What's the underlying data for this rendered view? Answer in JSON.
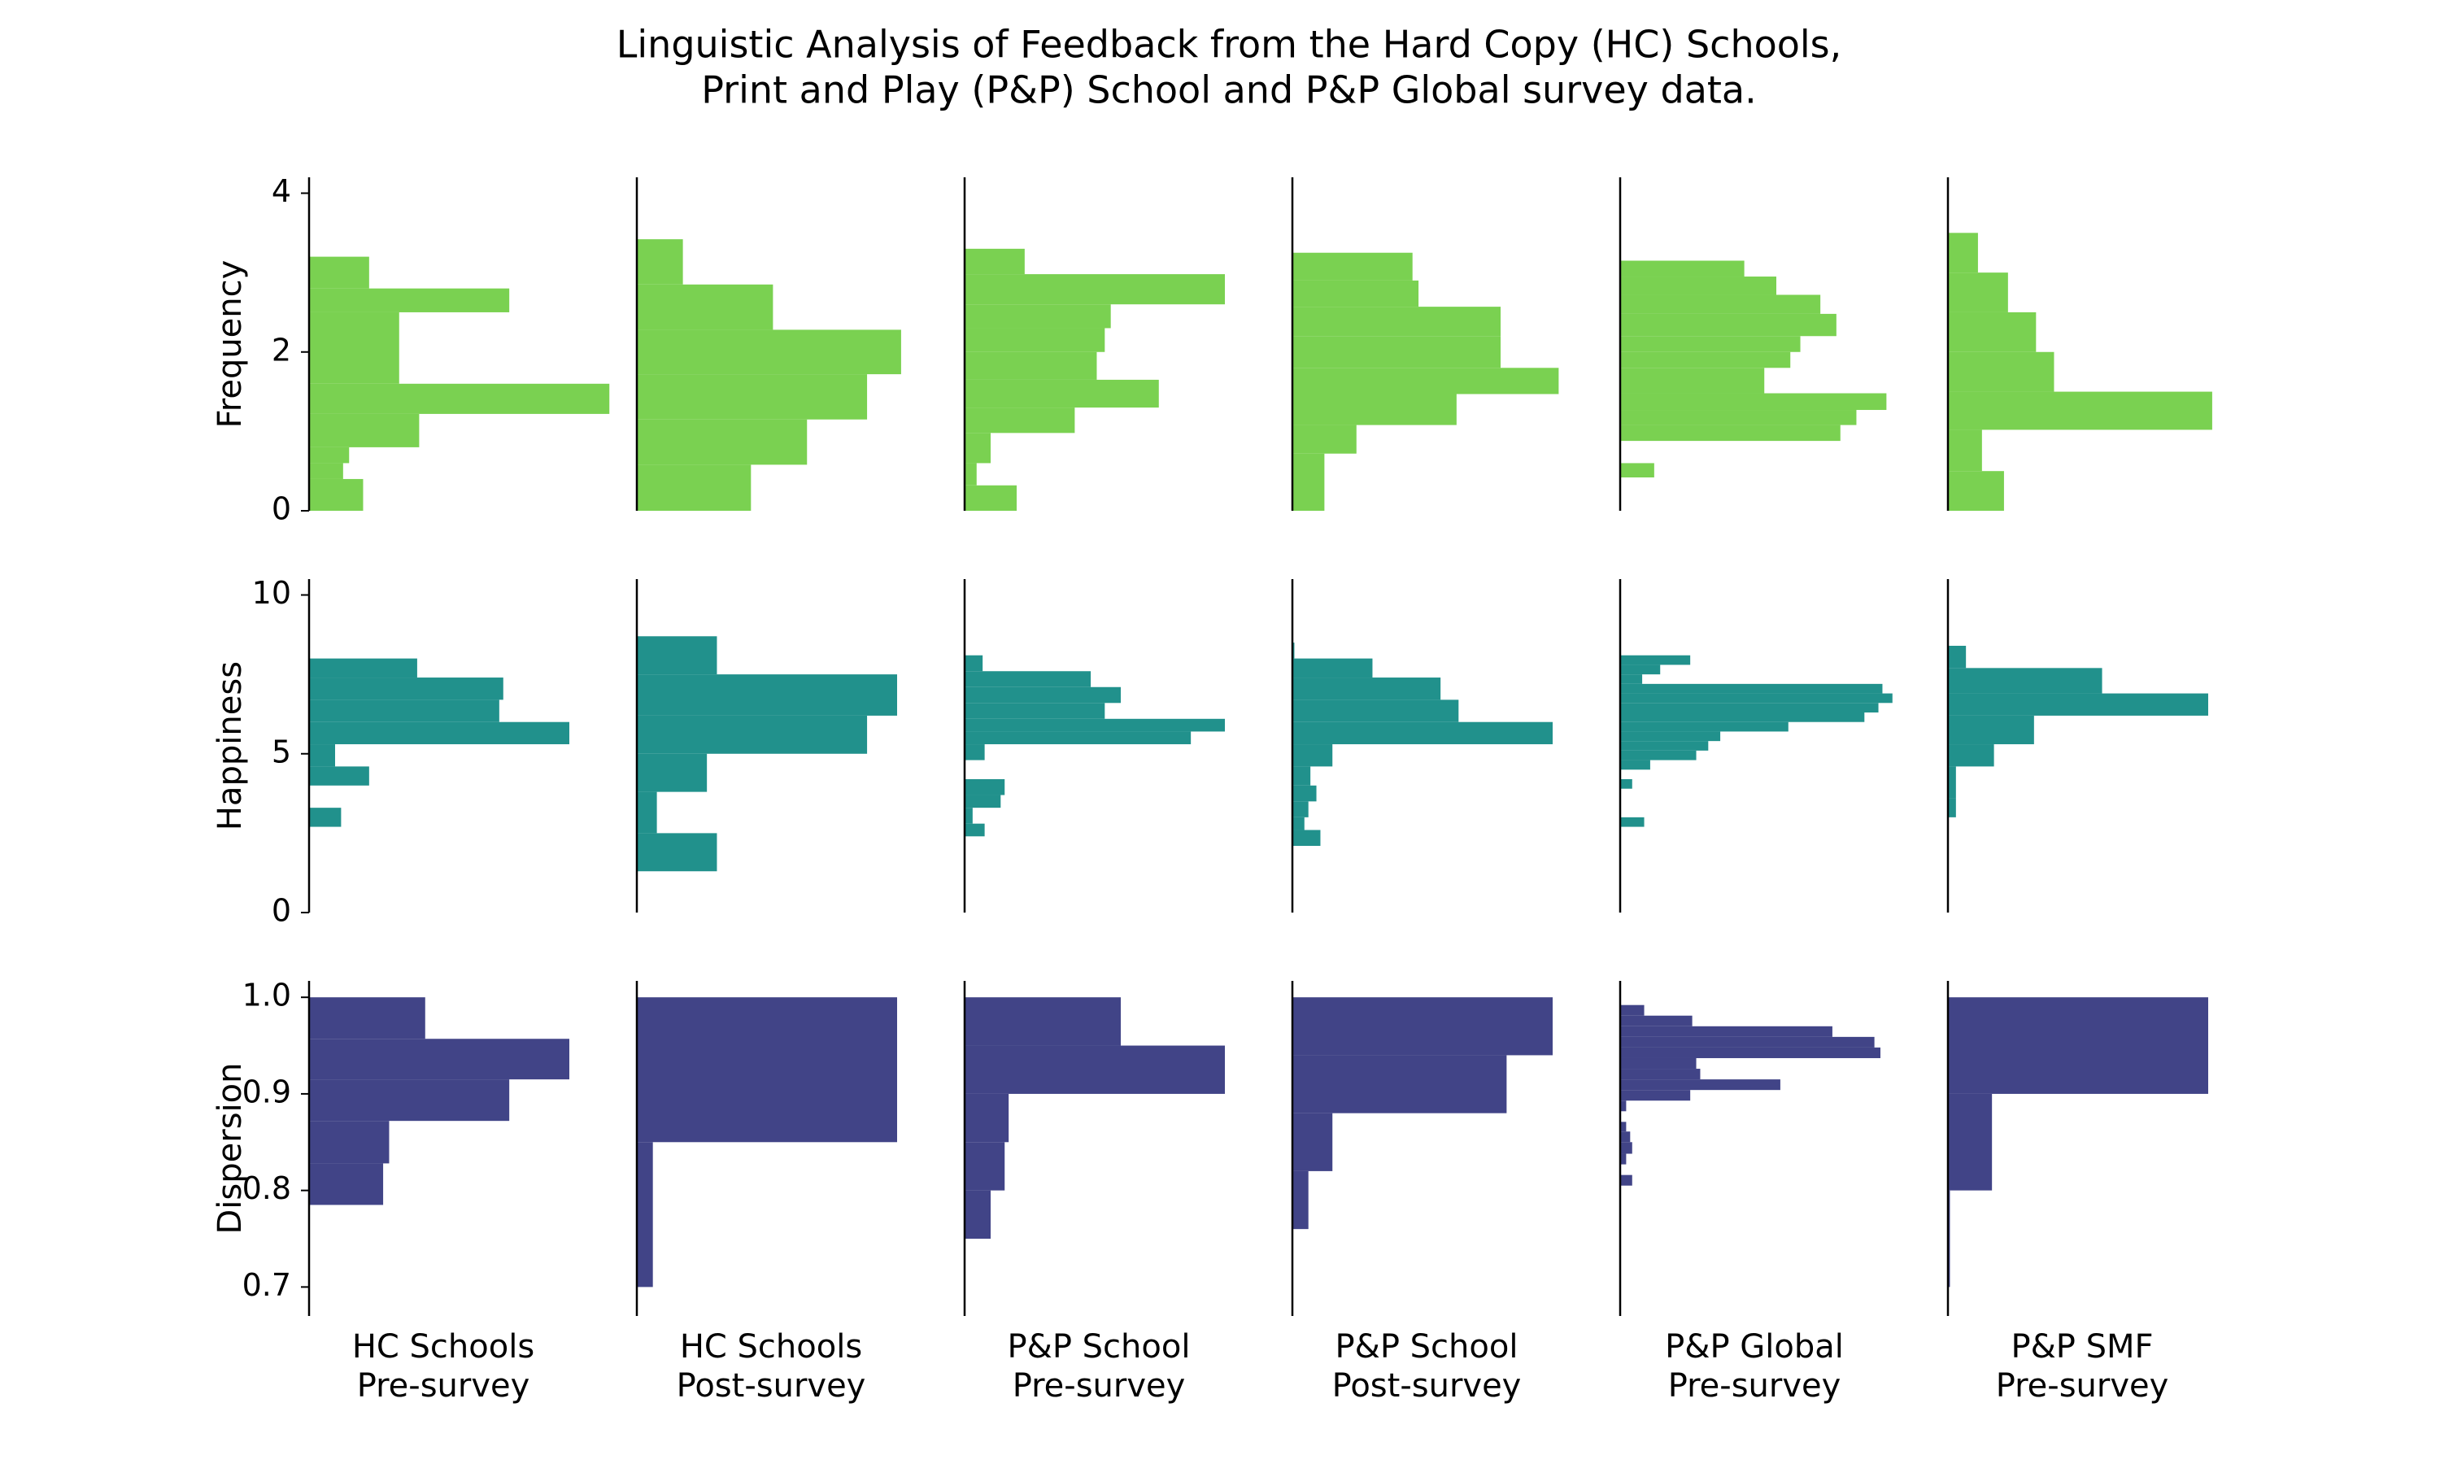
{
  "chart_data": {
    "type": "bar",
    "orientation": "horizontal",
    "title_lines": [
      "Linguistic Analysis of Feedback from the Hard Copy (HC) Schools,",
      "Print and Play (P&P) School and P&P Global survey data."
    ],
    "columns": [
      {
        "line1": "HC Schools",
        "line2": "Pre-survey"
      },
      {
        "line1": "HC Schools",
        "line2": "Post-survey"
      },
      {
        "line1": "P&P School",
        "line2": "Pre-survey"
      },
      {
        "line1": "P&P School",
        "line2": "Post-survey"
      },
      {
        "line1": "P&P Global",
        "line2": "Pre-survey"
      },
      {
        "line1": "P&P SMF",
        "line2": "Pre-survey"
      }
    ],
    "rows": [
      {
        "label": "Frequency",
        "color": "#7ad151",
        "ylim": [
          0,
          4.2
        ],
        "ticks": [
          0,
          2,
          4
        ],
        "tick_labels": [
          "0",
          "2",
          "4"
        ],
        "histograms": [
          [
            [
              0.0,
              0.4,
              0.27
            ],
            [
              0.4,
              0.6,
              0.17
            ],
            [
              0.6,
              0.8,
              0.2
            ],
            [
              0.8,
              1.22,
              0.55
            ],
            [
              1.22,
              1.6,
              1.5
            ],
            [
              1.6,
              2.5,
              0.45
            ],
            [
              2.5,
              2.8,
              1.0
            ],
            [
              2.8,
              3.2,
              0.3
            ]
          ],
          [
            [
              0.0,
              0.58,
              0.57
            ],
            [
              0.58,
              1.15,
              0.85
            ],
            [
              1.15,
              1.72,
              1.15
            ],
            [
              1.72,
              2.28,
              1.32
            ],
            [
              2.28,
              2.85,
              0.68
            ],
            [
              2.85,
              3.42,
              0.23
            ]
          ],
          [
            [
              0.0,
              0.32,
              0.26
            ],
            [
              0.32,
              0.6,
              0.06
            ],
            [
              0.6,
              0.98,
              0.13
            ],
            [
              0.98,
              1.3,
              0.55
            ],
            [
              1.3,
              1.65,
              0.97
            ],
            [
              1.65,
              2.0,
              0.66
            ],
            [
              2.0,
              2.3,
              0.7
            ],
            [
              2.3,
              2.6,
              0.73
            ],
            [
              2.6,
              2.98,
              1.3
            ],
            [
              2.98,
              3.3,
              0.3
            ]
          ],
          [
            [
              0.0,
              0.72,
              0.16
            ],
            [
              0.72,
              1.08,
              0.32
            ],
            [
              1.08,
              1.47,
              0.82
            ],
            [
              1.47,
              1.8,
              1.33
            ],
            [
              1.8,
              2.2,
              1.04
            ],
            [
              2.2,
              2.57,
              1.04
            ],
            [
              2.57,
              2.9,
              0.63
            ],
            [
              2.9,
              3.25,
              0.6
            ]
          ],
          [
            [
              0.42,
              0.6,
              0.17
            ],
            [
              0.88,
              1.08,
              1.1
            ],
            [
              1.08,
              1.27,
              1.18
            ],
            [
              1.27,
              1.48,
              1.33
            ],
            [
              1.48,
              1.8,
              0.72
            ],
            [
              1.8,
              2.0,
              0.85
            ],
            [
              2.0,
              2.2,
              0.9
            ],
            [
              2.2,
              2.48,
              1.08
            ],
            [
              2.48,
              2.72,
              1.0
            ],
            [
              2.72,
              2.95,
              0.78
            ],
            [
              2.95,
              3.15,
              0.62
            ]
          ],
          [
            [
              0.0,
              0.5,
              0.28
            ],
            [
              0.5,
              1.02,
              0.17
            ],
            [
              1.02,
              1.5,
              1.32
            ],
            [
              1.5,
              2.0,
              0.53
            ],
            [
              2.0,
              2.5,
              0.44
            ],
            [
              2.5,
              3.0,
              0.3
            ],
            [
              3.0,
              3.5,
              0.15
            ]
          ]
        ]
      },
      {
        "label": "Happiness",
        "color": "#21918c",
        "ylim": [
          0,
          10.5
        ],
        "ticks": [
          0,
          5,
          10
        ],
        "tick_labels": [
          "0",
          "5",
          "10"
        ],
        "histograms": [
          [
            [
              2.7,
              3.3,
              0.16
            ],
            [
              4.0,
              4.6,
              0.3
            ],
            [
              4.6,
              5.3,
              0.13
            ],
            [
              5.3,
              6.0,
              1.3
            ],
            [
              6.0,
              6.7,
              0.95
            ],
            [
              6.7,
              7.4,
              0.97
            ],
            [
              7.4,
              8.0,
              0.54
            ]
          ],
          [
            [
              1.3,
              2.5,
              0.4
            ],
            [
              2.5,
              3.8,
              0.1
            ],
            [
              3.8,
              5.0,
              0.35
            ],
            [
              5.0,
              6.2,
              1.15
            ],
            [
              6.2,
              7.5,
              1.3
            ],
            [
              7.5,
              8.7,
              0.4
            ]
          ],
          [
            [
              2.4,
              2.8,
              0.1
            ],
            [
              2.8,
              3.3,
              0.04
            ],
            [
              3.3,
              3.7,
              0.18
            ],
            [
              3.7,
              4.2,
              0.2
            ],
            [
              4.8,
              5.3,
              0.1
            ],
            [
              5.3,
              5.7,
              1.13
            ],
            [
              5.7,
              6.1,
              1.3
            ],
            [
              6.1,
              6.6,
              0.7
            ],
            [
              6.6,
              7.1,
              0.78
            ],
            [
              7.1,
              7.6,
              0.63
            ],
            [
              7.6,
              8.1,
              0.09
            ]
          ],
          [
            [
              2.1,
              2.6,
              0.14
            ],
            [
              2.6,
              3.0,
              0.06
            ],
            [
              3.0,
              3.5,
              0.08
            ],
            [
              3.5,
              4.0,
              0.12
            ],
            [
              4.0,
              4.6,
              0.09
            ],
            [
              4.6,
              5.3,
              0.2
            ],
            [
              5.3,
              6.0,
              1.3
            ],
            [
              6.0,
              6.7,
              0.83
            ],
            [
              6.7,
              7.4,
              0.74
            ],
            [
              7.4,
              8.0,
              0.4
            ],
            [
              8.0,
              8.5,
              0.01
            ]
          ],
          [
            [
              2.7,
              3.0,
              0.12
            ],
            [
              3.9,
              4.2,
              0.06
            ],
            [
              4.5,
              4.8,
              0.15
            ],
            [
              4.8,
              5.1,
              0.38
            ],
            [
              5.1,
              5.4,
              0.44
            ],
            [
              5.4,
              5.7,
              0.5
            ],
            [
              5.7,
              6.0,
              0.84
            ],
            [
              6.0,
              6.3,
              1.22
            ],
            [
              6.3,
              6.6,
              1.29
            ],
            [
              6.6,
              6.9,
              1.36
            ],
            [
              6.9,
              7.2,
              1.31
            ],
            [
              7.2,
              7.5,
              0.11
            ],
            [
              7.5,
              7.8,
              0.2
            ],
            [
              7.8,
              8.1,
              0.35
            ]
          ],
          [
            [
              3.0,
              3.6,
              0.04
            ],
            [
              3.6,
              4.6,
              0.04
            ],
            [
              4.6,
              5.3,
              0.23
            ],
            [
              5.3,
              6.2,
              0.43
            ],
            [
              6.2,
              6.9,
              1.3
            ],
            [
              6.9,
              7.7,
              0.77
            ],
            [
              7.7,
              8.4,
              0.09
            ]
          ]
        ]
      },
      {
        "label": "Dispersion",
        "color": "#414487",
        "ylim": [
          0.67,
          1.017
        ],
        "ticks": [
          0.7,
          0.8,
          0.9,
          1.0
        ],
        "tick_labels": [
          "0.7",
          "0.8",
          "0.9",
          "1.0"
        ],
        "histograms": [
          [
            [
              0.785,
              0.828,
              0.37
            ],
            [
              0.828,
              0.872,
              0.4
            ],
            [
              0.872,
              0.915,
              1.0
            ],
            [
              0.915,
              0.957,
              1.3
            ],
            [
              0.957,
              1.0,
              0.58
            ]
          ],
          [
            [
              0.7,
              0.85,
              0.08
            ],
            [
              0.85,
              1.0,
              1.3
            ]
          ],
          [
            [
              0.75,
              0.8,
              0.13
            ],
            [
              0.8,
              0.85,
              0.2
            ],
            [
              0.85,
              0.9,
              0.22
            ],
            [
              0.9,
              0.95,
              1.3
            ],
            [
              0.95,
              1.0,
              0.78
            ]
          ],
          [
            [
              0.76,
              0.82,
              0.08
            ],
            [
              0.82,
              0.88,
              0.2
            ],
            [
              0.88,
              0.94,
              1.07
            ],
            [
              0.94,
              1.0,
              1.3
            ]
          ],
          [
            [
              0.805,
              0.816,
              0.06
            ],
            [
              0.816,
              0.827,
              0.0
            ],
            [
              0.827,
              0.838,
              0.03
            ],
            [
              0.838,
              0.85,
              0.06
            ],
            [
              0.85,
              0.861,
              0.05
            ],
            [
              0.861,
              0.871,
              0.03
            ],
            [
              0.871,
              0.882,
              0.0
            ],
            [
              0.882,
              0.893,
              0.03
            ],
            [
              0.893,
              0.904,
              0.35
            ],
            [
              0.904,
              0.915,
              0.8
            ],
            [
              0.915,
              0.926,
              0.4
            ],
            [
              0.926,
              0.937,
              0.38
            ],
            [
              0.937,
              0.948,
              1.3
            ],
            [
              0.948,
              0.959,
              1.27
            ],
            [
              0.959,
              0.97,
              1.06
            ],
            [
              0.97,
              0.981,
              0.36
            ],
            [
              0.981,
              0.992,
              0.12
            ]
          ],
          [
            [
              0.7,
              0.8,
              0.01
            ],
            [
              0.8,
              0.9,
              0.22
            ],
            [
              0.9,
              1.0,
              1.3
            ]
          ]
        ]
      }
    ]
  }
}
